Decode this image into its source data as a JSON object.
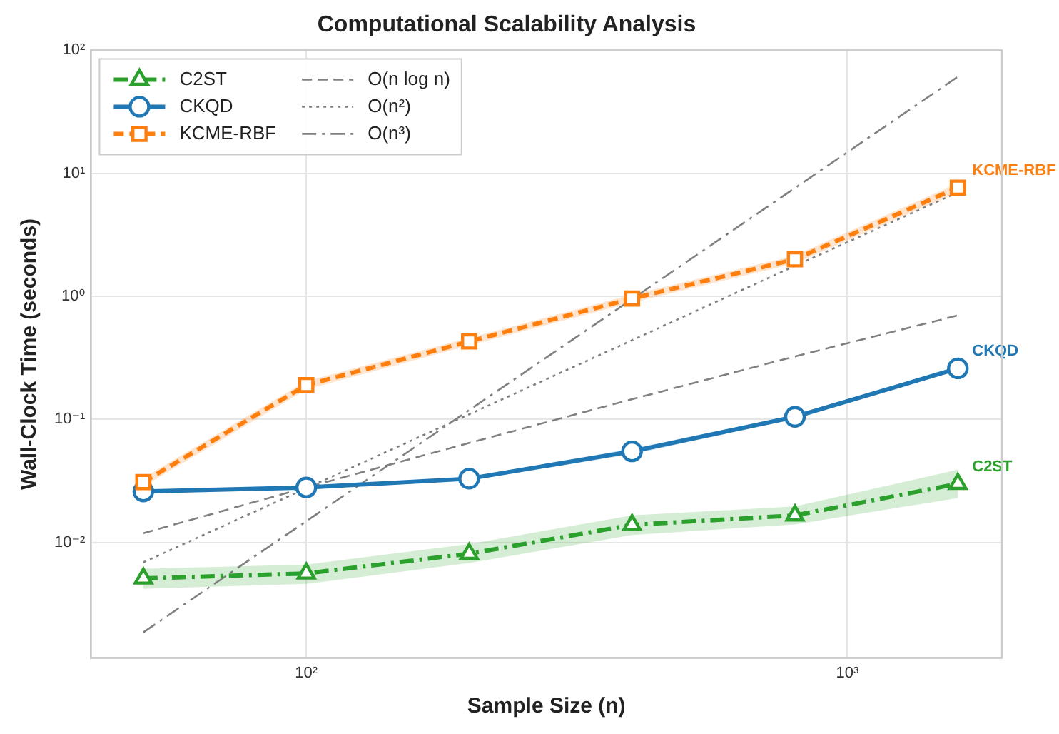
{
  "chart_data": {
    "type": "line",
    "title": "Computational Scalability Analysis",
    "xlabel": "Sample Size (n)",
    "ylabel": "Wall-Clock Time (seconds)",
    "log": "xy",
    "grid": true,
    "legend": "top left",
    "xlim": [
      40,
      1930
    ],
    "xticks": [
      {
        "value": 100,
        "label": "10²"
      },
      {
        "value": 1000,
        "label": "10³"
      }
    ],
    "ylim": [
      0.00115,
      100
    ],
    "yticks": [
      {
        "value": 0.01,
        "label": "10⁻²"
      },
      {
        "value": 0.1,
        "label": "10⁻¹"
      },
      {
        "value": 1,
        "label": "10⁰"
      },
      {
        "value": 10,
        "label": "10¹"
      },
      {
        "value": 100,
        "label": "10²"
      }
    ],
    "x": [
      50,
      100,
      200,
      400,
      800,
      1600
    ],
    "series": [
      {
        "name": "C2ST",
        "color": "#2ca02c",
        "marker": "triangle",
        "line_style": "dashdot",
        "values": [
          0.0051,
          0.0056,
          0.0081,
          0.0139,
          0.0166,
          0.03
        ],
        "lower": [
          0.0042,
          0.0046,
          0.0068,
          0.0115,
          0.014,
          0.023
        ],
        "upper": [
          0.0061,
          0.0066,
          0.0097,
          0.0166,
          0.0196,
          0.039
        ]
      },
      {
        "name": "CKQD",
        "color": "#1f77b4",
        "marker": "circle",
        "line_style": "solid",
        "values": [
          0.026,
          0.028,
          0.033,
          0.055,
          0.105,
          0.26
        ],
        "lower": [
          0.0252,
          0.0272,
          0.032,
          0.052,
          0.101,
          0.252
        ],
        "upper": [
          0.0268,
          0.0288,
          0.034,
          0.058,
          0.109,
          0.268
        ]
      },
      {
        "name": "KCME-RBF",
        "color": "#ff7f0e",
        "marker": "square",
        "line_style": "dashed",
        "values": [
          0.031,
          0.19,
          0.43,
          0.96,
          2.0,
          7.65
        ],
        "lower": [
          0.0285,
          0.175,
          0.4,
          0.89,
          1.85,
          7.0
        ],
        "upper": [
          0.0335,
          0.205,
          0.46,
          1.03,
          2.15,
          8.3
        ]
      },
      {
        "name": "O(n log n)",
        "color": "#808080",
        "marker": "none",
        "line_style": "dashed",
        "values": [
          0.0119,
          0.028,
          0.0644,
          0.146,
          0.325,
          0.7
        ]
      },
      {
        "name": "O(n²)",
        "color": "#808080",
        "marker": "none",
        "line_style": "dotted",
        "values": [
          0.0069,
          0.0276,
          0.11,
          0.44,
          1.77,
          7.0
        ]
      },
      {
        "name": "O(n³)",
        "color": "#808080",
        "marker": "none",
        "line_style": "dashdot",
        "values": [
          0.00186,
          0.0149,
          0.119,
          0.95,
          7.6,
          61
        ]
      }
    ]
  }
}
